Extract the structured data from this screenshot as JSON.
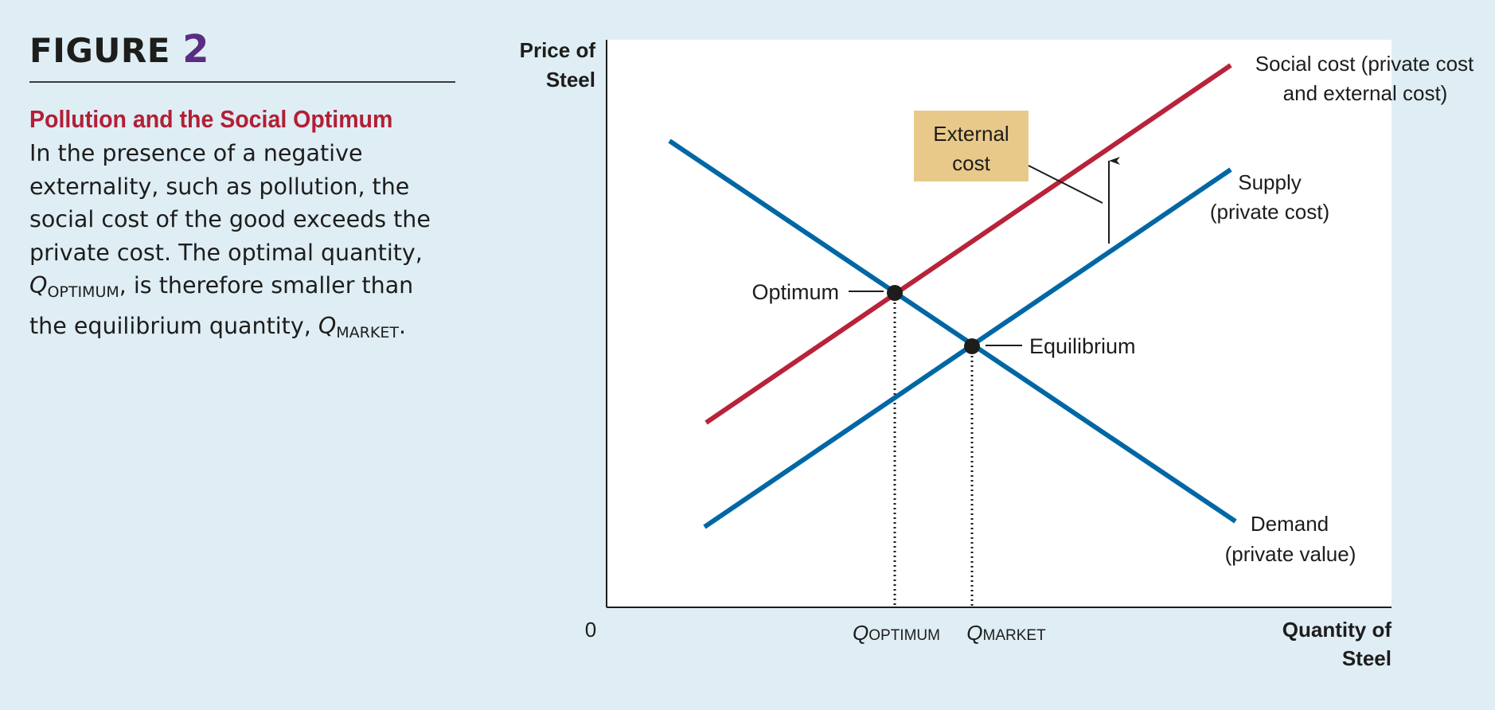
{
  "figure": {
    "label": "FIGURE",
    "number": "2",
    "title": "Pollution and the Social Optimum",
    "body_part1": "In the presence of a negative externality, such as pollution, the social cost of the good exceeds the private cost. The optimal quantity, ",
    "q_symbol": "Q",
    "q_optimum_sub": "OPTIMUM",
    "body_part2": ", is therefore smaller than the equilibrium quantity, ",
    "q_market_sub": "MARKET",
    "body_end": "."
  },
  "diagram": {
    "y_axis_line1": "Price of",
    "y_axis_line2": "Steel",
    "x_axis_line1": "Quantity of",
    "x_axis_line2": "Steel",
    "origin": "0",
    "social_cost_line1": "Social cost (private cost",
    "social_cost_line2": "and external cost)",
    "supply_line1": "Supply",
    "supply_line2": "(private cost)",
    "demand_line1": "Demand",
    "demand_line2": "(private value)",
    "external_cost_line1": "External",
    "external_cost_line2": "cost",
    "optimum": "Optimum",
    "equilibrium": "Equilibrium",
    "q_symbol": "Q",
    "q_optimum_sub": "OPTIMUM",
    "q_market_sub": "MARKET",
    "colors": {
      "demand_supply": "#0067a5",
      "social_cost": "#b8233a",
      "external_box": "#e9c98a",
      "background": "#dfedf5",
      "plot_area": "#ffffff"
    }
  }
}
